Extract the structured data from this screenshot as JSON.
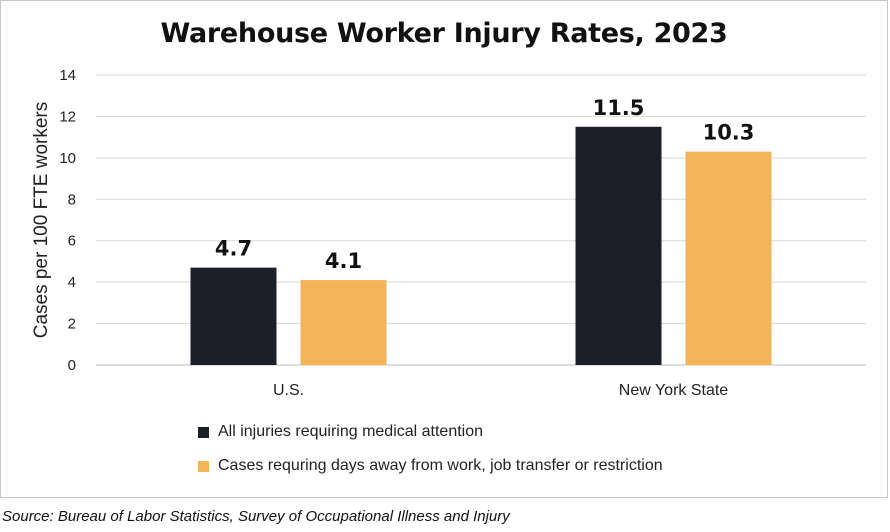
{
  "chart_data": {
    "type": "bar",
    "title": "Warehouse Worker Injury Rates, 2023",
    "ylabel": "Cases per 100 FTE workers",
    "xlabel": "",
    "ylim": [
      0,
      14
    ],
    "yticks": [
      0,
      2,
      4,
      6,
      8,
      10,
      12,
      14
    ],
    "grid": true,
    "legend_position": "bottom-left",
    "categories": [
      "U.S.",
      "New York State"
    ],
    "series": [
      {
        "name": "All injuries requiring medical attention",
        "values": [
          4.7,
          11.5
        ],
        "color": "#1b1f2a"
      },
      {
        "name": "Cases requring days away from work, job transfer or restriction",
        "values": [
          4.1,
          10.3
        ],
        "color": "#f3b45a"
      }
    ],
    "data_labels": [
      [
        "4.7",
        "11.5"
      ],
      [
        "4.1",
        "10.3"
      ]
    ]
  },
  "source": "Source: Bureau of Labor Statistics, Survey of Occupational Illness and Injury"
}
